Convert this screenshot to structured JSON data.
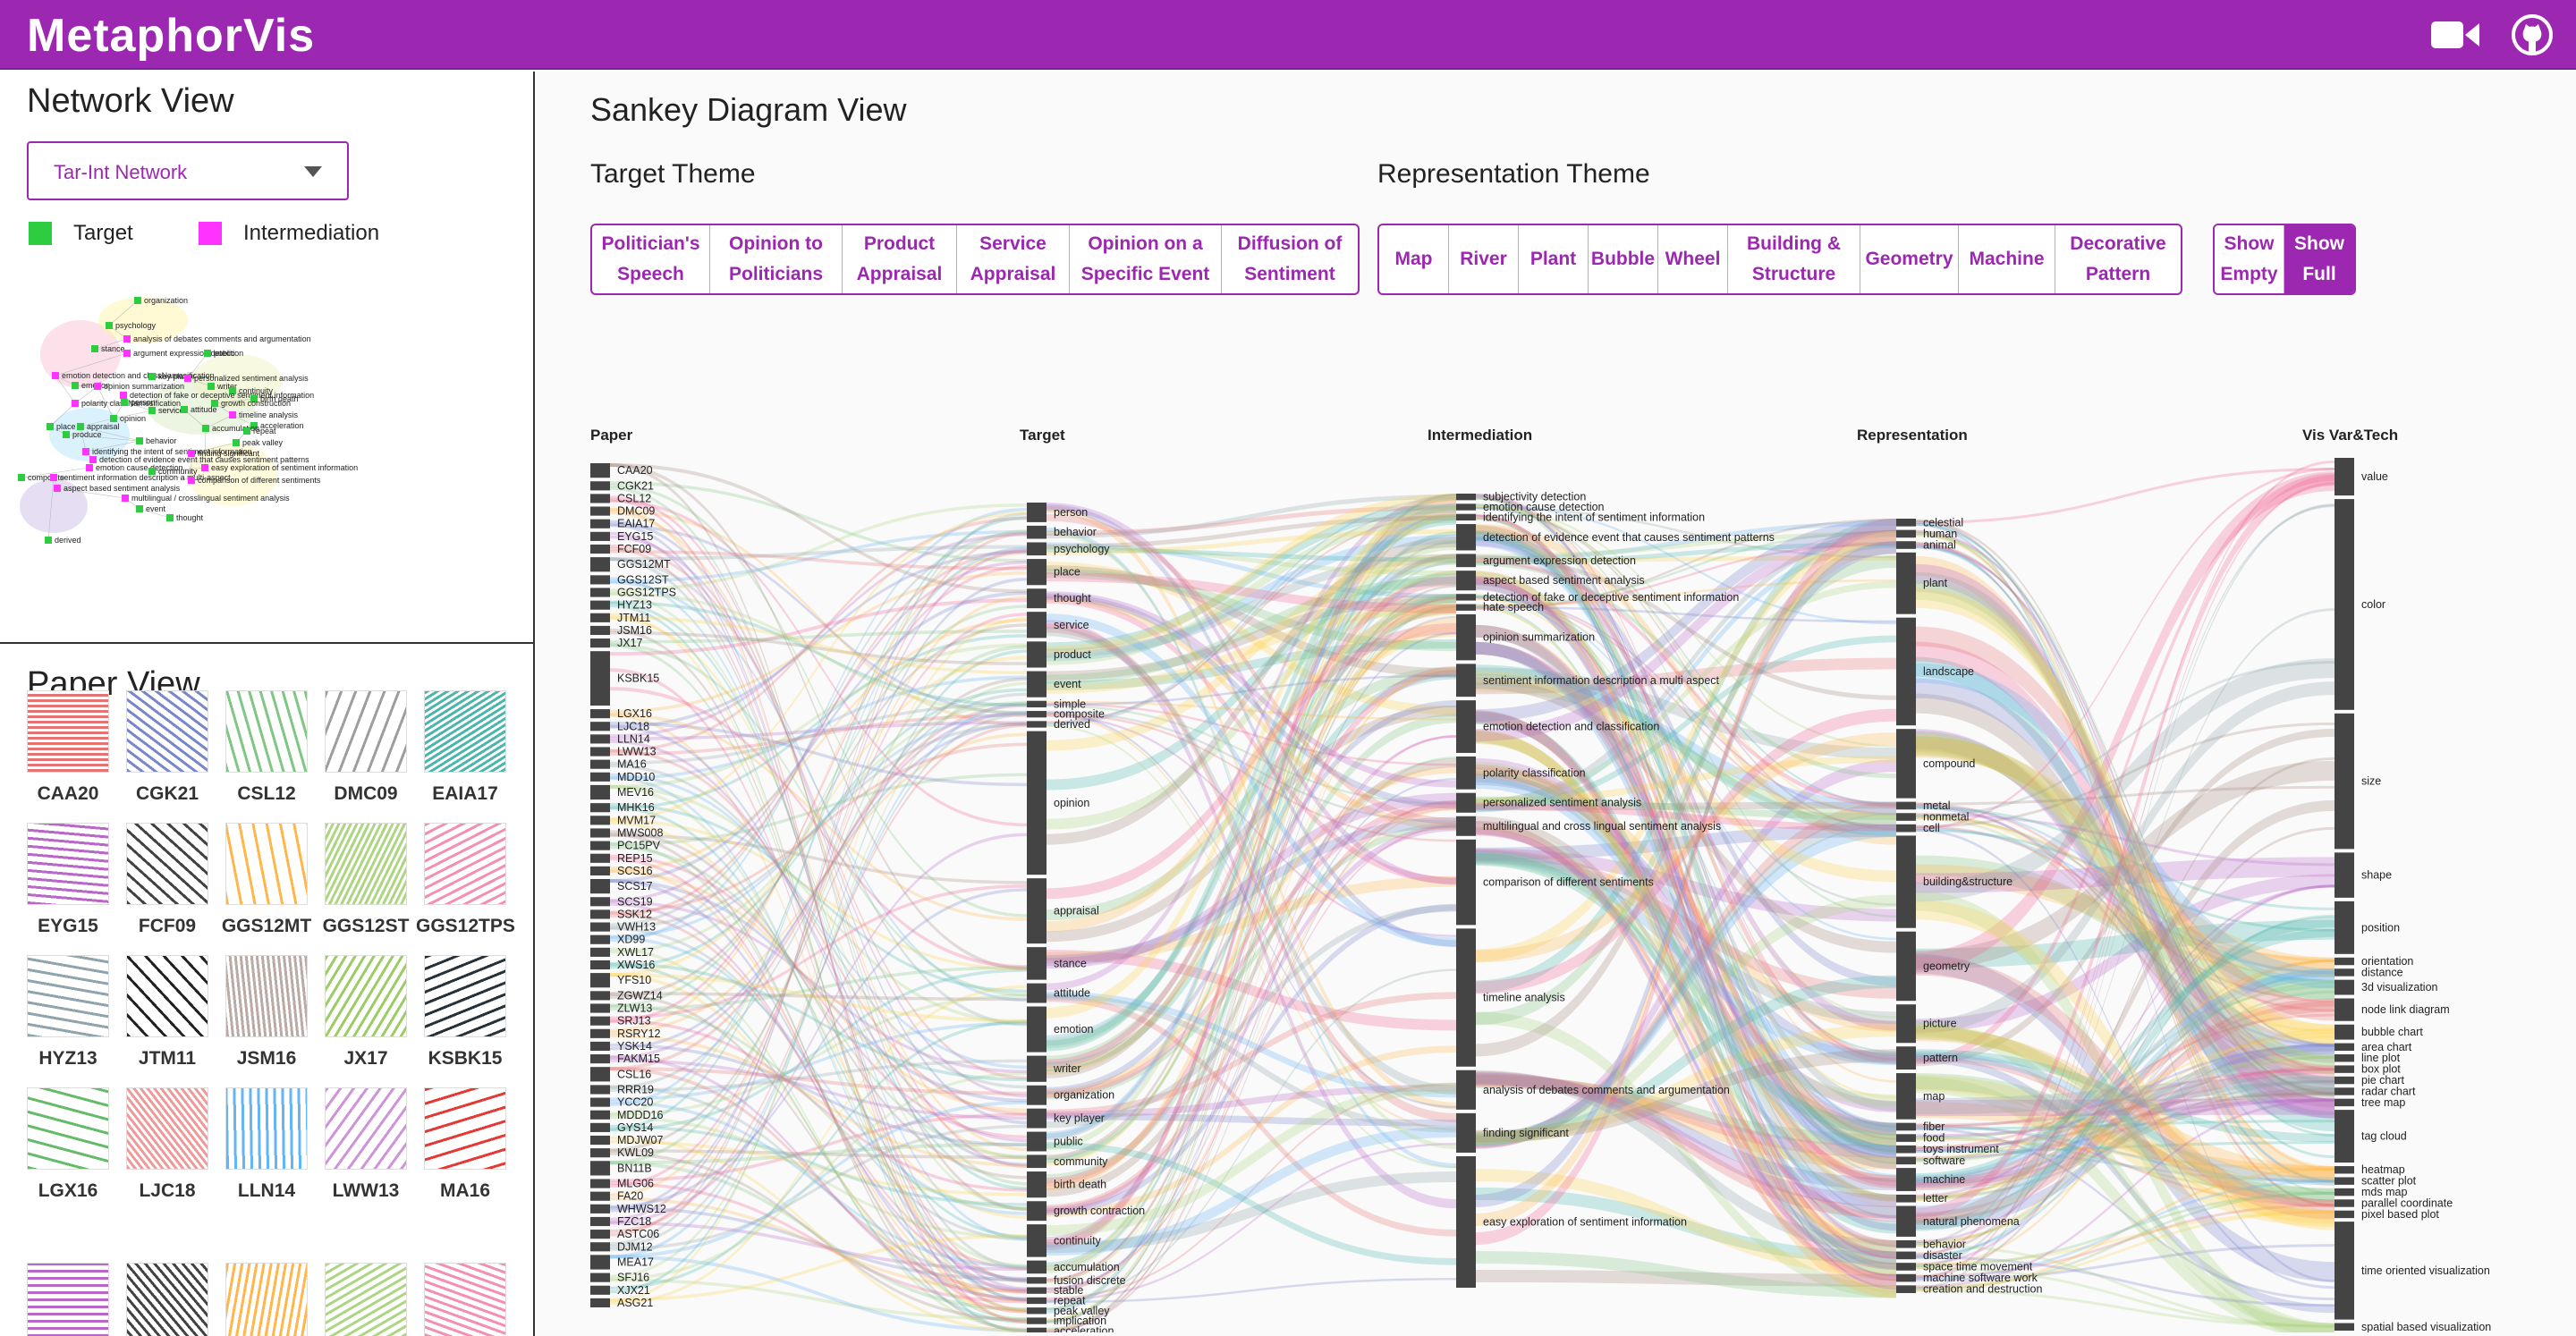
{
  "app": {
    "title": "MetaphorVis"
  },
  "network": {
    "title": "Network View",
    "select_value": "Tar-Int Network",
    "legend": [
      {
        "label": "Target",
        "color": "#2ecc40"
      },
      {
        "label": "Intermediation",
        "color": "#ff33ff"
      }
    ],
    "nodes": [
      {
        "label": "organization",
        "type": "target"
      },
      {
        "label": "psychology",
        "type": "target"
      },
      {
        "label": "analysis of debates comments and argumentation",
        "type": "inter"
      },
      {
        "label": "stance",
        "type": "target"
      },
      {
        "label": "argument expression detection",
        "type": "inter"
      },
      {
        "label": "public",
        "type": "target"
      },
      {
        "label": "emotion detection and classNamesification",
        "type": "inter"
      },
      {
        "label": "key player",
        "type": "target"
      },
      {
        "label": "personalized sentiment analysis",
        "type": "inter"
      },
      {
        "label": "emotion",
        "type": "target"
      },
      {
        "label": "opinion summarization",
        "type": "inter"
      },
      {
        "label": "writer",
        "type": "target"
      },
      {
        "label": "continuity",
        "type": "target"
      },
      {
        "label": "detection of fake or deceptive sentiment information",
        "type": "inter"
      },
      {
        "label": "birth death",
        "type": "target"
      },
      {
        "label": "polarity classNamesification",
        "type": "inter"
      },
      {
        "label": "person",
        "type": "target"
      },
      {
        "label": "growth construction",
        "type": "target"
      },
      {
        "label": "service",
        "type": "target"
      },
      {
        "label": "attitude",
        "type": "target"
      },
      {
        "label": "timeline analysis",
        "type": "inter"
      },
      {
        "label": "opinion",
        "type": "target"
      },
      {
        "label": "acceleration",
        "type": "target"
      },
      {
        "label": "place",
        "type": "target"
      },
      {
        "label": "appraisal",
        "type": "target"
      },
      {
        "label": "accumulation",
        "type": "target"
      },
      {
        "label": "repeat",
        "type": "target"
      },
      {
        "label": "produce",
        "type": "target"
      },
      {
        "label": "behavior",
        "type": "target"
      },
      {
        "label": "peak valley",
        "type": "target"
      },
      {
        "label": "identifying the intent of sentiment information",
        "type": "inter"
      },
      {
        "label": "finding significant",
        "type": "inter"
      },
      {
        "label": "detection of evidence event that causes sentiment patterns",
        "type": "inter"
      },
      {
        "label": "emotion cause detection",
        "type": "inter"
      },
      {
        "label": "easy exploration of sentiment information",
        "type": "inter"
      },
      {
        "label": "community",
        "type": "target"
      },
      {
        "label": "composite",
        "type": "target"
      },
      {
        "label": "sentiment information description a multi-aspect",
        "type": "inter"
      },
      {
        "label": "comparison of different sentiments",
        "type": "inter"
      },
      {
        "label": "aspect based sentiment analysis",
        "type": "inter"
      },
      {
        "label": "multilingual / crosslingual sentiment analysis",
        "type": "inter"
      },
      {
        "label": "event",
        "type": "target"
      },
      {
        "label": "thought",
        "type": "target"
      },
      {
        "label": "derived",
        "type": "target"
      }
    ]
  },
  "papers": {
    "title": "Paper View",
    "items": [
      "CAA20",
      "CGK21",
      "CSL12",
      "DMC09",
      "EAIA17",
      "EYG15",
      "FCF09",
      "GGS12MT",
      "GGS12ST",
      "GGS12TPS",
      "HYZ13",
      "JTM11",
      "JSM16",
      "JX17",
      "KSBK15",
      "LGX16",
      "LJC18",
      "LLN14",
      "LWW13",
      "MA16"
    ]
  },
  "sankey_view": {
    "title": "Sankey Diagram View",
    "target_theme": {
      "title": "Target Theme",
      "buttons": [
        [
          "Politician's",
          "Speech"
        ],
        [
          "Opinion to",
          "Politicians"
        ],
        [
          "Product",
          "Appraisal"
        ],
        [
          "Service",
          "Appraisal"
        ],
        [
          "Opinion on a",
          "Specific Event"
        ],
        [
          "Diffusion of",
          "Sentiment"
        ]
      ]
    },
    "representation_theme": {
      "title": "Representation Theme",
      "buttons": [
        [
          "Map"
        ],
        [
          "River"
        ],
        [
          "Plant"
        ],
        [
          "Bubble"
        ],
        [
          "Wheel"
        ],
        [
          "Building &",
          "Structure"
        ],
        [
          "Geometry"
        ],
        [
          "Machine"
        ],
        [
          "Decorative",
          "Pattern"
        ]
      ]
    },
    "toggles": [
      {
        "lines": [
          "Show",
          "Empty"
        ],
        "active": false
      },
      {
        "lines": [
          "Show",
          "Full"
        ],
        "active": true
      }
    ]
  },
  "sankey": {
    "columns": [
      "Paper",
      "Target",
      "Intermediation",
      "Representation",
      "Vis Var&Tech"
    ],
    "paper": [
      "CAA20",
      "CGK21",
      "CSL12",
      "DMC09",
      "EAIA17",
      "EYG15",
      "FCF09",
      "GGS12MT",
      "GGS12ST",
      "GGS12TPS",
      "HYZ13",
      "JTM11",
      "JSM16",
      "JX17",
      "KSBK15",
      "LGX16",
      "LJC18",
      "LLN14",
      "LWW13",
      "MA16",
      "MDD10",
      "MEV16",
      "MHK16",
      "MVM17",
      "MWS008",
      "PC15PV",
      "REP15",
      "SCS16",
      "SCS17",
      "SCS19",
      "SSK12",
      "VWH13",
      "XD99",
      "XWL17",
      "XWS16",
      "YFS10",
      "ZGWZ14",
      "ZLW13",
      "SRJ13",
      "RSRY12",
      "YSK14",
      "FAKM15",
      "CSL16",
      "RRR19",
      "YCC20",
      "MDDD16",
      "GYS14",
      "MDJW07",
      "KWL09",
      "BN11B",
      "MLG06",
      "FA20",
      "WHWS12",
      "FZC18",
      "ASTC06",
      "DJM12",
      "MEA17",
      "SFJ16",
      "XJX21",
      "ASG21"
    ],
    "target": [
      "person",
      "behavior",
      "psychology",
      "place",
      "thought",
      "service",
      "product",
      "event",
      "simple",
      "composite",
      "derived",
      "opinion",
      "appraisal",
      "stance",
      "attitude",
      "emotion",
      "writer",
      "organization",
      "key player",
      "public",
      "community",
      "birth death",
      "growth contraction",
      "continuity",
      "accumulation",
      "fusion discrete",
      "stable",
      "repeat",
      "peak valley",
      "implication",
      "acceleration"
    ],
    "inter": [
      "subjectivity detection",
      "emotion cause detection",
      "identifying the intent of sentiment information",
      "detection of evidence event that causes sentiment patterns",
      "argument expression detection",
      "aspect based sentiment analysis",
      "detection of fake or deceptive sentiment information",
      "hate speech",
      "opinion summarization",
      "sentiment information description a multi aspect",
      "emotion detection and classification",
      "polarity classification",
      "personalized sentiment analysis",
      "multilingual and cross lingual sentiment analysis",
      "comparison of different sentiments",
      "timeline analysis",
      "analysis of debates comments and argumentation",
      "finding significant",
      "easy exploration of sentiment information"
    ],
    "rep": [
      "celestial",
      "human",
      "animal",
      "plant",
      "landscape",
      "compound",
      "metal",
      "nonmetal",
      "cell",
      "building&structure",
      "geometry",
      "picture",
      "pattern",
      "map",
      "fiber",
      "food",
      "toys instrument",
      "software",
      "machine",
      "letter",
      "natural phenomena",
      "behavior",
      "disaster",
      "space time movement",
      "machine software work",
      "creation and destruction"
    ],
    "vis": [
      "value",
      "color",
      "size",
      "shape",
      "position",
      "orientation",
      "distance",
      "3d visualization",
      "node link diagram",
      "bubble chart",
      "area chart",
      "line plot",
      "box plot",
      "pie chart",
      "radar chart",
      "tree map",
      "tag cloud",
      "heatmap",
      "scatter plot",
      "mds map",
      "parallel coordinate",
      "pixel based plot",
      "time oriented visualization",
      "spatial based visualization"
    ]
  }
}
